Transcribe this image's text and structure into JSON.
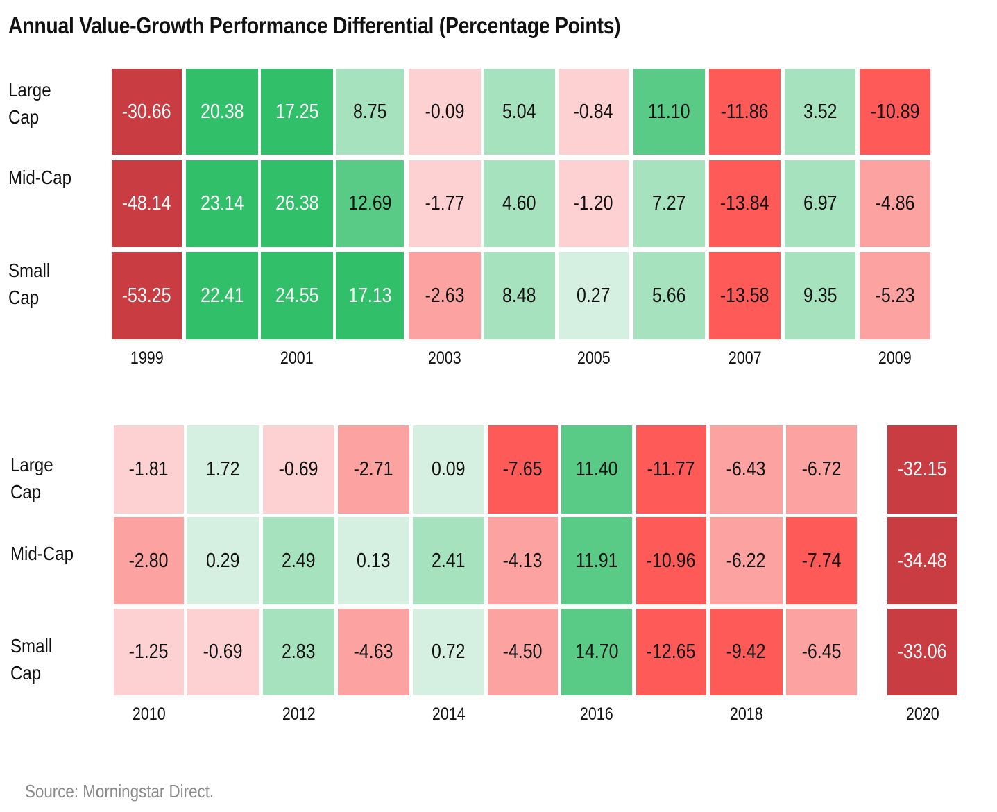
{
  "chart_data": {
    "type": "heatmap",
    "title": "Annual Value-Growth Performance Differential (Percentage Points)",
    "source": "Source: Morningstar Direct.",
    "color_scale": {
      "dark_red": "#c93c42",
      "red": "#fd5a58",
      "light_red": "#fca3a2",
      "pale_red": "#fdd1d1",
      "palest_green": "#d5f0e0",
      "light_green": "#a7e2bf",
      "green": "#59cb86",
      "dark_green": "#31bf6a"
    },
    "panels": [
      {
        "rows": [
          {
            "label": "Large\nCap",
            "values": [
              "-30.66",
              "20.38",
              "17.25",
              "8.75",
              "-0.09",
              "5.04",
              "-0.84",
              "11.10",
              "-11.86",
              "3.52",
              "-10.89"
            ]
          },
          {
            "label": "Mid-Cap",
            "values": [
              "-48.14",
              "23.14",
              "26.38",
              "12.69",
              "-1.77",
              "4.60",
              "-1.20",
              "7.27",
              "-13.84",
              "6.97",
              "-4.86"
            ]
          },
          {
            "label": "Small\nCap",
            "values": [
              "-53.25",
              "22.41",
              "24.55",
              "17.13",
              "-2.63",
              "8.48",
              "0.27",
              "5.66",
              "-13.58",
              "9.35",
              "-5.23"
            ]
          }
        ],
        "year_labels": [
          {
            "col": 0,
            "text": "1999"
          },
          {
            "col": 2,
            "text": "2001"
          },
          {
            "col": 4,
            "text": "2003"
          },
          {
            "col": 6,
            "text": "2005"
          },
          {
            "col": 8,
            "text": "2007"
          },
          {
            "col": 10,
            "text": "2009"
          }
        ]
      },
      {
        "rows": [
          {
            "label": "Large\nCap",
            "values": [
              "-1.81",
              "1.72",
              "-0.69",
              "-2.71",
              "0.09",
              "-7.65",
              "11.40",
              "-11.77",
              "-6.43",
              "-6.72",
              "-32.15"
            ]
          },
          {
            "label": "Mid-Cap",
            "values": [
              "-2.80",
              "0.29",
              "2.49",
              "0.13",
              "2.41",
              "-4.13",
              "11.91",
              "-10.96",
              "-6.22",
              "-7.74",
              "-34.48"
            ]
          },
          {
            "label": "Small\nCap",
            "values": [
              "-1.25",
              "-0.69",
              "2.83",
              "-4.63",
              "0.72",
              "-4.50",
              "14.70",
              "-12.65",
              "-9.42",
              "-6.45",
              "-33.06"
            ]
          }
        ],
        "year_labels": [
          {
            "col": 0,
            "text": "2010"
          },
          {
            "col": 2,
            "text": "2012"
          },
          {
            "col": 4,
            "text": "2014"
          },
          {
            "col": 6,
            "text": "2016"
          },
          {
            "col": 8,
            "text": "2018"
          },
          {
            "col": 10,
            "text": "2020"
          }
        ]
      }
    ]
  }
}
